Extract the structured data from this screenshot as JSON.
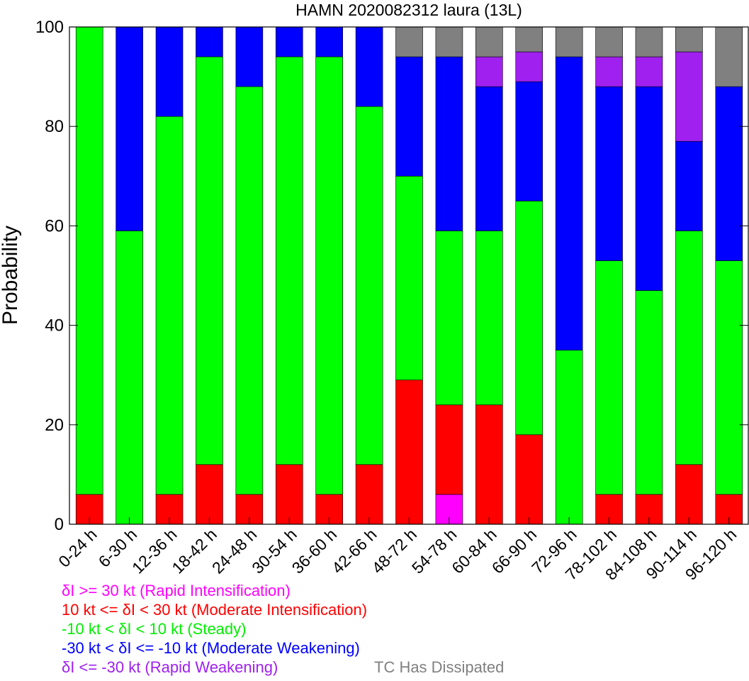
{
  "chart_data": {
    "type": "bar",
    "stacked": true,
    "title": "HAMN 2020082312 laura (13L)",
    "xlabel": "",
    "ylabel": "Probability",
    "ylim": [
      0,
      100
    ],
    "yticks": [
      0,
      20,
      40,
      60,
      80,
      100
    ],
    "grid": false,
    "legend": "bottom",
    "categories": [
      "0-24 h",
      "6-30 h",
      "12-36 h",
      "18-42 h",
      "24-48 h",
      "30-54 h",
      "36-60 h",
      "42-66 h",
      "48-72 h",
      "54-78 h",
      "60-84 h",
      "66-90 h",
      "72-96 h",
      "78-102 h",
      "84-108 h",
      "90-114 h",
      "96-120 h"
    ],
    "series": [
      {
        "name": "δI >= 30 kt (Rapid Intensification)",
        "color": "#ff00ff",
        "values": [
          0,
          0,
          0,
          0,
          0,
          0,
          0,
          0,
          0,
          6,
          0,
          0,
          0,
          0,
          0,
          0,
          0
        ]
      },
      {
        "name": "10 kt <= δI < 30 kt (Moderate Intensification)",
        "color": "#ff0000",
        "values": [
          6,
          0,
          6,
          12,
          6,
          12,
          6,
          12,
          29,
          18,
          24,
          18,
          0,
          6,
          6,
          12,
          6
        ]
      },
      {
        "name": "-10 kt < δI < 10 kt (Steady)",
        "color": "#00ff00",
        "values": [
          94,
          59,
          76,
          82,
          82,
          82,
          88,
          72,
          41,
          35,
          35,
          47,
          35,
          47,
          41,
          47,
          47
        ]
      },
      {
        "name": "-30 kt < δI <= -10 kt (Moderate Weakening)",
        "color": "#0000ff",
        "values": [
          0,
          41,
          18,
          6,
          12,
          6,
          6,
          16,
          24,
          35,
          29,
          24,
          59,
          35,
          41,
          18,
          35
        ]
      },
      {
        "name": "δI <= -30 kt (Rapid Weakening)",
        "color": "#a020f0",
        "values": [
          0,
          0,
          0,
          0,
          0,
          0,
          0,
          0,
          0,
          0,
          6,
          6,
          0,
          6,
          6,
          18,
          0
        ]
      },
      {
        "name": "TC Has Dissipated",
        "color": "#808080",
        "values": [
          0,
          0,
          0,
          0,
          0,
          0,
          0,
          0,
          6,
          6,
          6,
          5,
          6,
          6,
          6,
          5,
          12
        ]
      }
    ]
  },
  "legend_items": [
    {
      "text": "δI >= 30 kt (Rapid Intensification)",
      "color": "#ff00ff"
    },
    {
      "text": "10 kt <= δI < 30 kt (Moderate Intensification)",
      "color": "#ff0000"
    },
    {
      "text": "-10 kt < δI < 10 kt (Steady)",
      "color": "#00ff00"
    },
    {
      "text": "-30 kt < δI <= -10 kt (Moderate Weakening)",
      "color": "#0000ff"
    },
    {
      "text": "δI <= -30 kt (Rapid Weakening)",
      "color": "#a020f0"
    },
    {
      "text": "TC Has Dissipated",
      "color": "#808080"
    }
  ]
}
